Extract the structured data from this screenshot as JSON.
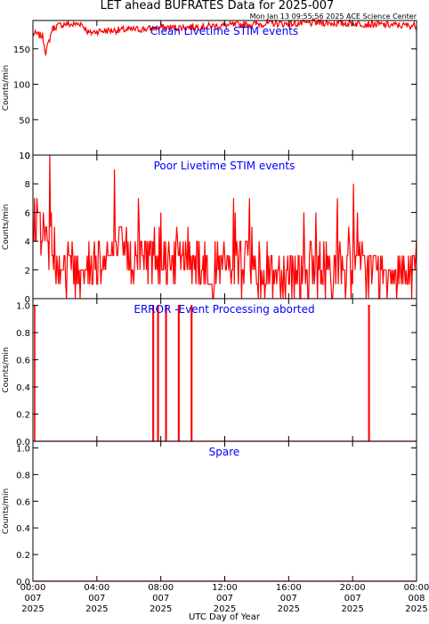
{
  "header": {
    "title": "LET ahead BUFRATES Data for 2025-007",
    "timestamp": "Mon Jan 13 09:55:56 2025 ACE Science Center"
  },
  "colors": {
    "data": "#ff0000",
    "panel_title": "#0000ff",
    "axes": "#000000"
  },
  "x_axis": {
    "label": "UTC Day of Year",
    "range_hours": [
      0,
      24
    ],
    "ticks": [
      {
        "hour": 0,
        "time": "00:00",
        "day": "007",
        "year": "2025"
      },
      {
        "hour": 4,
        "time": "04:00",
        "day": "007",
        "year": "2025"
      },
      {
        "hour": 8,
        "time": "08:00",
        "day": "007",
        "year": "2025"
      },
      {
        "hour": 12,
        "time": "12:00",
        "day": "007",
        "year": "2025"
      },
      {
        "hour": 16,
        "time": "16:00",
        "day": "007",
        "year": "2025"
      },
      {
        "hour": 20,
        "time": "20:00",
        "day": "007",
        "year": "2025"
      },
      {
        "hour": 24,
        "time": "00:00",
        "day": "008",
        "year": "2025"
      }
    ]
  },
  "chart_data": [
    {
      "type": "line",
      "title": "Clean Livetime STIM events",
      "ylabel": "Counts/min",
      "ylim": [
        0,
        190
      ],
      "yticks": [
        "0",
        "50",
        "100",
        "150"
      ],
      "ytick_values": [
        0,
        50,
        100,
        150
      ],
      "x_hours": [
        0,
        0.3,
        0.6,
        0.8,
        1.0,
        1.2,
        1.5,
        2,
        2.5,
        3,
        3.3,
        3.5,
        4,
        5,
        6,
        7,
        8,
        9,
        10,
        11,
        12,
        13,
        14,
        15,
        16,
        17,
        18,
        19,
        20,
        21,
        22,
        23,
        24
      ],
      "values": [
        172,
        170,
        168,
        145,
        160,
        178,
        182,
        185,
        184,
        186,
        178,
        172,
        175,
        176,
        177,
        178,
        180,
        180,
        181,
        182,
        183,
        184,
        185,
        186,
        185,
        186,
        187,
        186,
        186,
        185,
        184,
        183,
        183
      ]
    },
    {
      "type": "line",
      "title": "Poor Livetime STIM events",
      "ylabel": "Counts/min",
      "ylim": [
        0,
        10
      ],
      "yticks": [
        "0",
        "2",
        "4",
        "6",
        "8",
        "10"
      ],
      "ytick_values": [
        0,
        2,
        4,
        6,
        8,
        10
      ],
      "x_hours": [
        0,
        1,
        2,
        3,
        4,
        5,
        6,
        7,
        8,
        9,
        10,
        11,
        12,
        13,
        14,
        15,
        16,
        17,
        18,
        19,
        20,
        21,
        22,
        23,
        24
      ],
      "values": [
        6,
        4,
        2,
        2,
        3,
        3,
        3,
        3,
        3,
        3,
        3,
        2,
        2,
        2,
        2,
        2,
        2,
        2,
        2,
        2,
        2,
        2,
        2,
        2,
        2
      ]
    },
    {
      "type": "line",
      "title": "ERROR -Event Processing aborted",
      "ylabel": "Counts/min",
      "ylim": [
        0,
        1.05
      ],
      "yticks": [
        "0.0",
        "0.2",
        "0.4",
        "0.6",
        "0.8",
        "1.0"
      ],
      "ytick_values": [
        0,
        0.2,
        0.4,
        0.6,
        0.8,
        1.0
      ],
      "x_hours": [
        0.0,
        0.1,
        0.1,
        0.12,
        0.12,
        7.5,
        7.5,
        7.55,
        7.55,
        7.8,
        7.8,
        7.85,
        7.85,
        8.3,
        8.3,
        8.35,
        8.35,
        9.1,
        9.1,
        9.15,
        9.15,
        9.9,
        9.9,
        9.95,
        9.95,
        21.0,
        21.0,
        21.05,
        21.05,
        24.0
      ],
      "values": [
        0,
        0,
        1,
        1,
        0,
        0,
        1,
        1,
        0,
        0,
        1,
        1,
        0,
        0,
        1,
        1,
        0,
        0,
        1,
        1,
        0,
        0,
        1,
        1,
        0,
        0,
        1,
        1,
        0,
        0
      ]
    },
    {
      "type": "line",
      "title": "Spare",
      "ylabel": "Counts/min",
      "ylim": [
        0,
        1.05
      ],
      "yticks": [
        "0.0",
        "0.2",
        "0.4",
        "0.6",
        "0.8",
        "1.0"
      ],
      "ytick_values": [
        0,
        0.2,
        0.4,
        0.6,
        0.8,
        1.0
      ],
      "x_hours": [
        0,
        24
      ],
      "values": [
        0,
        0
      ]
    }
  ]
}
